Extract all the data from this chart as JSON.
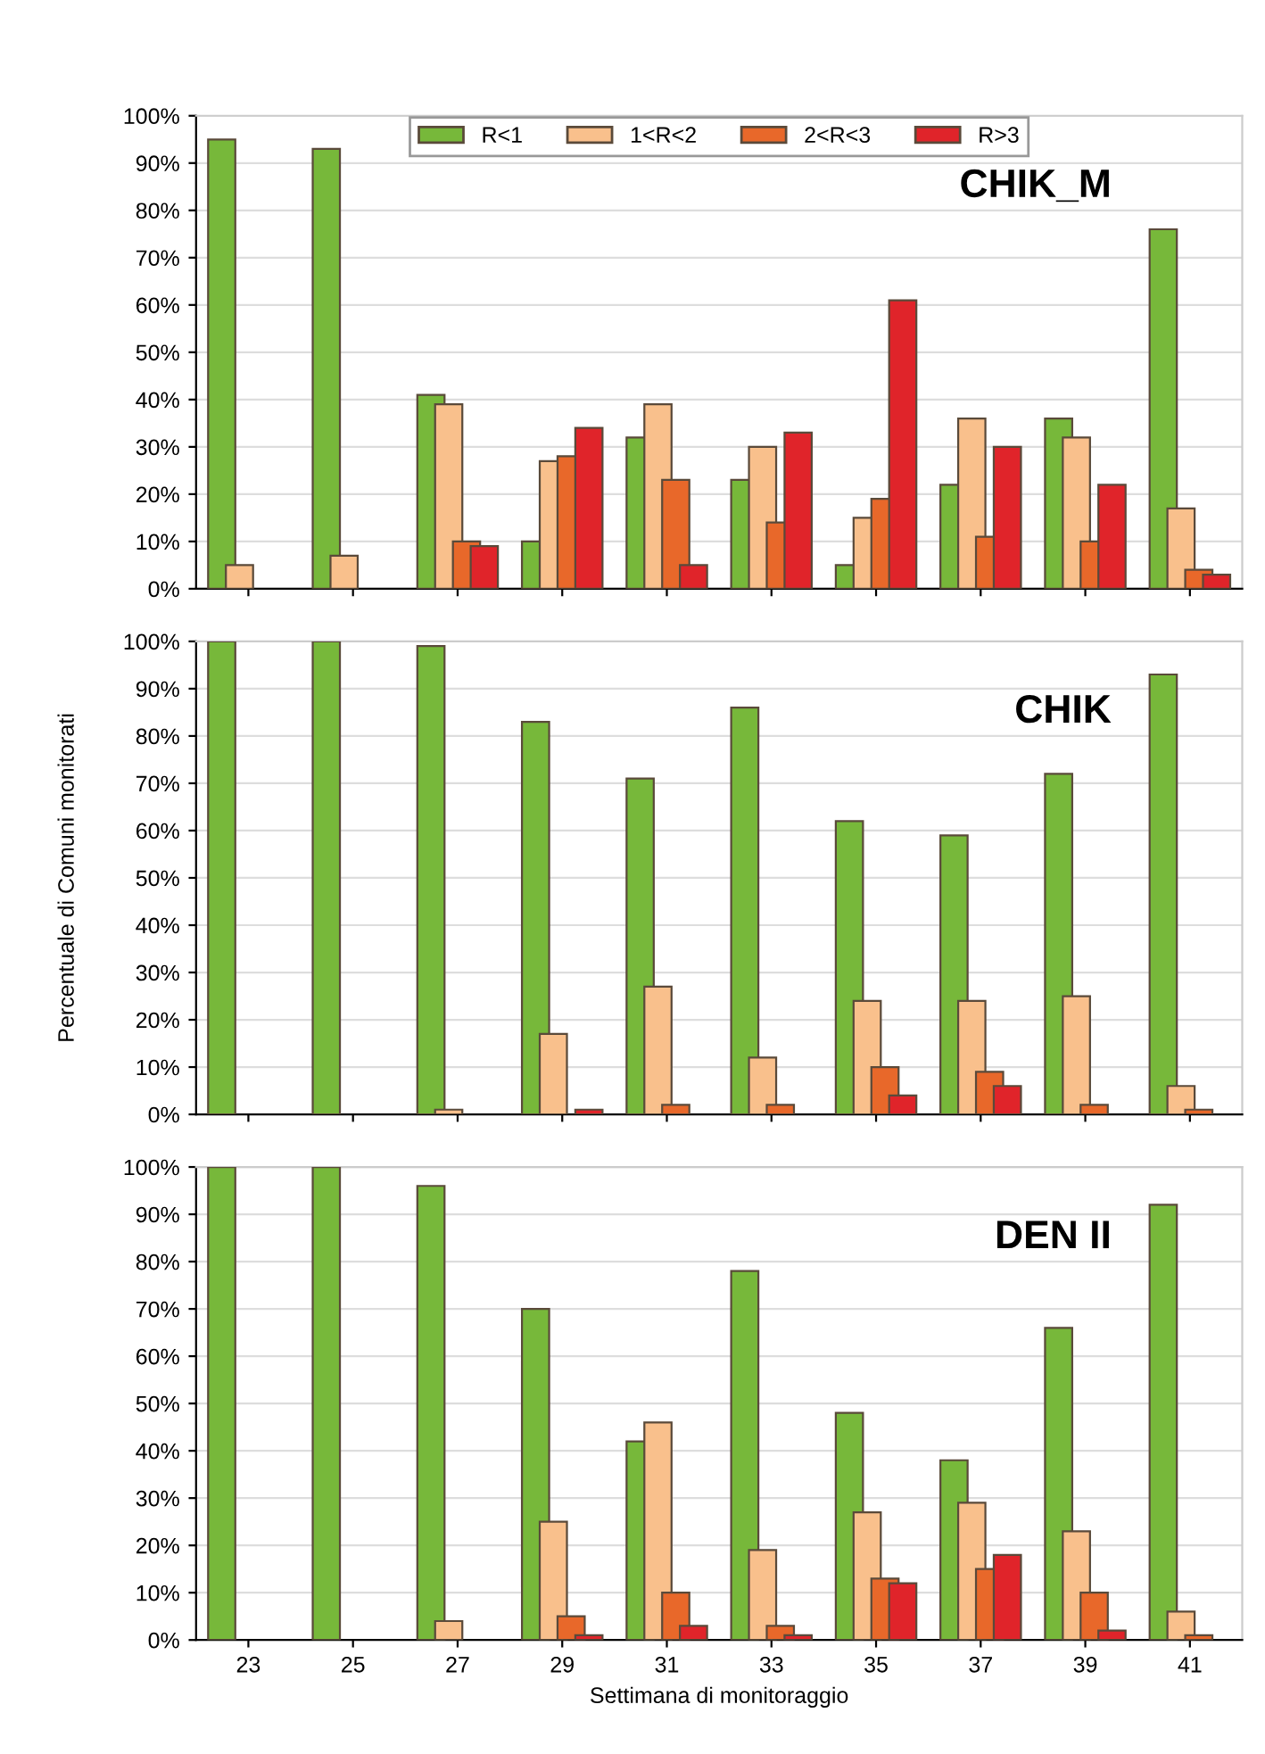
{
  "chart_data": [
    {
      "type": "bar",
      "title": "CHIK_M",
      "categories": [
        "23",
        "25",
        "27",
        "29",
        "31",
        "33",
        "35",
        "37",
        "39",
        "41"
      ],
      "series": [
        {
          "name": "R<1",
          "color": "#77b83a",
          "values": [
            95,
            93,
            41,
            10,
            32,
            23,
            5,
            22,
            36,
            76
          ]
        },
        {
          "name": "1<R<2",
          "color": "#f9c08c",
          "values": [
            5,
            7,
            39,
            27,
            39,
            30,
            15,
            36,
            32,
            17
          ]
        },
        {
          "name": "2<R<3",
          "color": "#e8682a",
          "values": [
            0,
            0,
            10,
            28,
            23,
            14,
            19,
            11,
            10,
            4
          ]
        },
        {
          "name": "R>3",
          "color": "#e0242a",
          "values": [
            0,
            0,
            9,
            34,
            5,
            33,
            61,
            30,
            22,
            3
          ]
        }
      ],
      "ylim": [
        0,
        100
      ],
      "yticks": [
        {
          "value": 0,
          "label": "0%"
        },
        {
          "value": 10,
          "label": "10%"
        },
        {
          "value": 20,
          "label": "20%"
        },
        {
          "value": 30,
          "label": "30%"
        },
        {
          "value": 40,
          "label": "40%"
        },
        {
          "value": 50,
          "label": "50%"
        },
        {
          "value": 60,
          "label": "60%"
        },
        {
          "value": 70,
          "label": "70%"
        },
        {
          "value": 80,
          "label": "80%"
        },
        {
          "value": 90,
          "label": "90%"
        },
        {
          "value": 100,
          "label": "100%"
        }
      ],
      "grid": "y",
      "legend": "top",
      "tick_labels": "y"
    },
    {
      "type": "bar",
      "title": "CHIK",
      "ylabel": "Percentuale di Comuni monitorati",
      "categories": [
        "23",
        "25",
        "27",
        "29",
        "31",
        "33",
        "35",
        "37",
        "39",
        "41"
      ],
      "series": [
        {
          "color": "#77b83a",
          "values": [
            100,
            100,
            99,
            83,
            71,
            86,
            62,
            59,
            72,
            93
          ]
        },
        {
          "color": "#f9c08c",
          "values": [
            0,
            0,
            1,
            17,
            27,
            12,
            24,
            24,
            25,
            6
          ]
        },
        {
          "color": "#e8682a",
          "values": [
            0,
            0,
            0,
            0,
            2,
            2,
            10,
            9,
            2,
            1
          ]
        },
        {
          "color": "#e0242a",
          "values": [
            0,
            0,
            0,
            1,
            0,
            0,
            4,
            6,
            0,
            0
          ]
        }
      ],
      "ylim": [
        0,
        100
      ],
      "yticks": [
        {
          "value": 0,
          "label": "0%"
        },
        {
          "value": 10,
          "label": "10%"
        },
        {
          "value": 20,
          "label": "20%"
        },
        {
          "value": 30,
          "label": "30%"
        },
        {
          "value": 40,
          "label": "40%"
        },
        {
          "value": 50,
          "label": "50%"
        },
        {
          "value": 60,
          "label": "60%"
        },
        {
          "value": 70,
          "label": "70%"
        },
        {
          "value": 80,
          "label": "80%"
        },
        {
          "value": 90,
          "label": "90%"
        },
        {
          "value": 100,
          "label": "100%"
        }
      ],
      "grid": "y",
      "tick_labels": "y"
    },
    {
      "type": "bar",
      "title": "DEN II",
      "xlabel": "Settimana di monitoraggio",
      "categories": [
        "23",
        "25",
        "27",
        "29",
        "31",
        "33",
        "35",
        "37",
        "39",
        "41"
      ],
      "series": [
        {
          "color": "#77b83a",
          "values": [
            100,
            100,
            96,
            70,
            42,
            78,
            48,
            38,
            66,
            92
          ]
        },
        {
          "color": "#f9c08c",
          "values": [
            0,
            0,
            4,
            25,
            46,
            19,
            27,
            29,
            23,
            6
          ]
        },
        {
          "color": "#e8682a",
          "values": [
            0,
            0,
            0,
            5,
            10,
            3,
            13,
            15,
            10,
            1
          ]
        },
        {
          "color": "#e0242a",
          "values": [
            0,
            0,
            0,
            1,
            3,
            1,
            12,
            18,
            2,
            0
          ]
        }
      ],
      "ylim": [
        0,
        100
      ],
      "yticks": [
        {
          "value": 0,
          "label": "0%"
        },
        {
          "value": 10,
          "label": "10%"
        },
        {
          "value": 20,
          "label": "20%"
        },
        {
          "value": 30,
          "label": "30%"
        },
        {
          "value": 40,
          "label": "40%"
        },
        {
          "value": 50,
          "label": "50%"
        },
        {
          "value": 60,
          "label": "60%"
        },
        {
          "value": 70,
          "label": "70%"
        },
        {
          "value": 80,
          "label": "80%"
        },
        {
          "value": 90,
          "label": "90%"
        },
        {
          "value": 100,
          "label": "100%"
        }
      ],
      "grid": "y"
    }
  ]
}
